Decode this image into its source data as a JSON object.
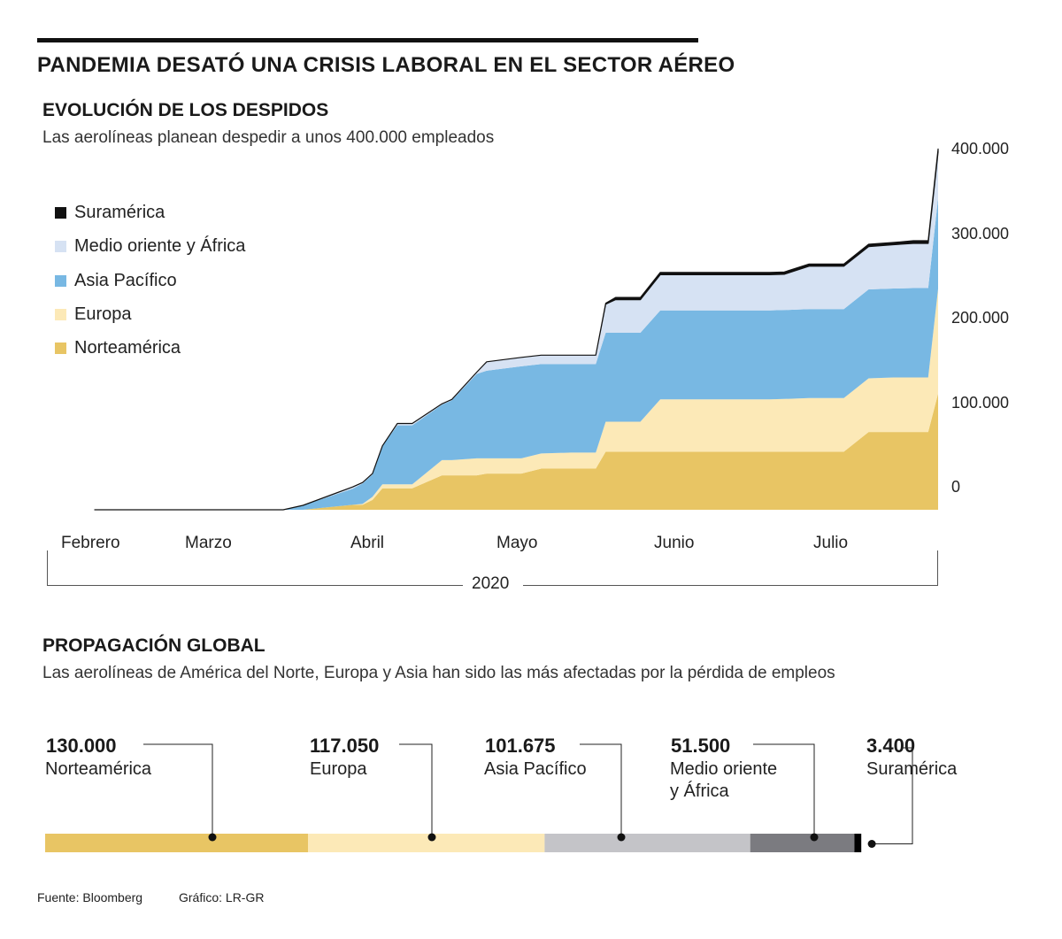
{
  "title": "PANDEMIA DESATÓ UNA CRISIS LABORAL EN EL SECTOR AÉREO",
  "section1": {
    "title": "EVOLUCIÓN DE LOS DESPIDOS",
    "subtitle": "Las aerolíneas planean despedir a unos 400.000 empleados"
  },
  "section2": {
    "title": "PROPAGACIÓN GLOBAL",
    "subtitle": "Las aerolíneas de América del Norte, Europa y Asia han sido las más afectadas por la pérdida de empleos"
  },
  "legend": [
    {
      "label": "Suramérica",
      "color": "#111111"
    },
    {
      "label": "Medio oriente y África",
      "color": "#d6e2f3"
    },
    {
      "label": "Asia Pacífico",
      "color": "#78b8e3"
    },
    {
      "label": "Europa",
      "color": "#fce9b7"
    },
    {
      "label": "Norteamérica",
      "color": "#e8c564"
    }
  ],
  "chart_data": [
    {
      "type": "area",
      "stacked": true,
      "title": "EVOLUCIÓN DE LOS DESPIDOS",
      "xlabel": "2020",
      "ylabel": "",
      "ylim": [
        0,
        400000
      ],
      "y_ticks": [
        "400.000",
        "300.000",
        "200.000",
        "100.000",
        "0"
      ],
      "x_ticks": [
        "Febrero",
        "Marzo",
        "Abril",
        "Mayo",
        "Junio",
        "Julio"
      ],
      "x_domain": [
        "Feb 1",
        "Jul 31"
      ],
      "x_days": [
        0,
        9,
        18,
        28,
        38,
        42,
        52,
        54,
        56,
        58,
        61,
        64,
        70,
        72,
        77,
        79,
        86,
        90,
        96,
        99,
        101,
        103,
        105,
        107,
        110,
        114,
        118,
        121,
        124,
        128,
        130,
        136,
        139,
        144,
        150,
        151,
        156,
        161,
        165,
        168,
        170
      ],
      "series": [
        {
          "name": "Norteamérica",
          "values": [
            0,
            0,
            0,
            0,
            0,
            0,
            5500,
            5500,
            11000,
            24000,
            24000,
            24000,
            38500,
            38500,
            38500,
            40500,
            40500,
            46000,
            46000,
            46000,
            46000,
            65000,
            65000,
            65000,
            65000,
            65000,
            65000,
            65000,
            65000,
            65000,
            65000,
            65000,
            65000,
            65000,
            65000,
            65000,
            87000,
            87000,
            87000,
            87000,
            130000
          ]
        },
        {
          "name": "Europa",
          "values": [
            0,
            0,
            0,
            0,
            0,
            0,
            0,
            1000,
            3500,
            4500,
            4500,
            4500,
            17000,
            17000,
            19000,
            17000,
            17000,
            17000,
            18000,
            18000,
            18000,
            33500,
            33500,
            33500,
            33500,
            58500,
            58500,
            58500,
            58500,
            58500,
            58500,
            58500,
            59000,
            60000,
            60000,
            60000,
            60000,
            61000,
            61000,
            61000,
            117050
          ]
        },
        {
          "name": "Asia Pacífico",
          "values": [
            0,
            0,
            0,
            0,
            0,
            5000,
            18000,
            23000,
            25000,
            43000,
            66000,
            66000,
            62000,
            67000,
            94500,
            98000,
            103000,
            100000,
            99000,
            99000,
            99000,
            99500,
            99500,
            99500,
            99500,
            99500,
            99500,
            99500,
            99500,
            99500,
            99500,
            99500,
            99500,
            99500,
            99500,
            99500,
            99500,
            99500,
            100000,
            100000,
            101675
          ]
        },
        {
          "name": "Medio oriente y África",
          "values": [
            0,
            0,
            0,
            0,
            0,
            0,
            2000,
            1000,
            1000,
            0,
            2000,
            2000,
            1000,
            1000,
            2000,
            10000,
            10000,
            10000,
            10000,
            10000,
            10000,
            32000,
            37000,
            37000,
            37000,
            40000,
            40000,
            40000,
            40000,
            40000,
            40000,
            40000,
            40000,
            48000,
            48000,
            48000,
            48000,
            49000,
            50000,
            50000,
            51500
          ]
        },
        {
          "name": "Suramérica",
          "values": [
            0,
            0,
            0,
            0,
            0,
            0,
            0,
            0,
            0,
            0,
            0,
            0,
            0,
            0,
            0,
            0,
            0,
            0,
            0,
            0,
            0,
            1000,
            2500,
            2500,
            2500,
            2500,
            2500,
            2500,
            2500,
            2500,
            2500,
            2500,
            2500,
            2500,
            2500,
            2500,
            2500,
            2500,
            3000,
            3000,
            3400
          ]
        }
      ]
    },
    {
      "type": "bar",
      "orientation": "horizontal-stacked",
      "title": "PROPAGACIÓN GLOBAL",
      "categories": [
        "Norteamérica",
        "Europa",
        "Asia Pacífico",
        "Medio oriente y África",
        "Suramérica"
      ],
      "values": [
        130000,
        117050,
        101675,
        51500,
        3400
      ],
      "value_labels": [
        "130.000",
        "117.050",
        "101.675",
        "51.500",
        "3.400"
      ],
      "label_lines": [
        [
          "Norteamérica"
        ],
        [
          "Europa"
        ],
        [
          "Asia Pacífico"
        ],
        [
          "Medio oriente",
          "y África"
        ],
        [
          "Suramérica"
        ]
      ],
      "colors": [
        "#e8c564",
        "#fce9b7",
        "#c4c4c8",
        "#7b7b80",
        "#000000"
      ]
    }
  ],
  "footer": {
    "source": "Fuente: Bloomberg",
    "credit": "Gráfico: LR-GR"
  }
}
